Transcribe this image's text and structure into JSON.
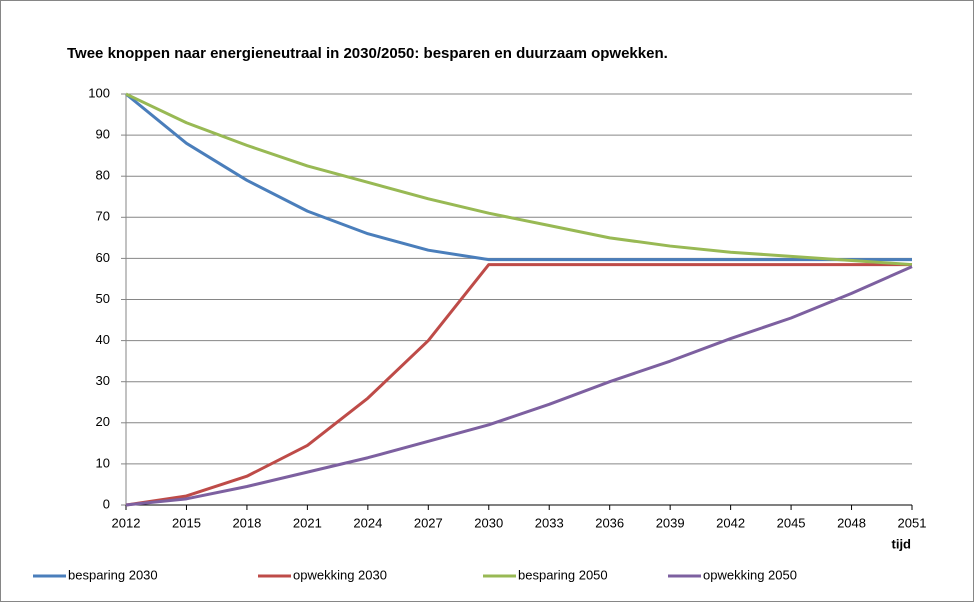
{
  "chart_data": {
    "type": "line",
    "title": "Twee knoppen naar energieneutraal in 2030/2050:  besparen en duurzaam opwekken.",
    "x_label": "tijd",
    "x": [
      2012,
      2015,
      2018,
      2021,
      2024,
      2027,
      2030,
      2033,
      2036,
      2039,
      2042,
      2045,
      2048,
      2051
    ],
    "series": [
      {
        "name": "besparing 2030",
        "color": "#4a7ebb",
        "values": [
          100,
          88,
          79,
          71.5,
          66,
          62,
          59.7,
          59.7,
          59.7,
          59.7,
          59.7,
          59.7,
          59.7,
          59.7
        ]
      },
      {
        "name": "opwekking 2030",
        "color": "#be4b48",
        "values": [
          0,
          2.2,
          7,
          14.5,
          26,
          40,
          58.5,
          58.5,
          58.5,
          58.5,
          58.5,
          58.5,
          58.5,
          58.5
        ]
      },
      {
        "name": "besparing 2050",
        "color": "#98b954",
        "values": [
          100,
          93,
          87.5,
          82.5,
          78.5,
          74.5,
          71,
          68,
          65,
          63,
          61.5,
          60.5,
          59.5,
          58.5
        ]
      },
      {
        "name": "opwekking 2050",
        "color": "#7d60a0",
        "values": [
          0,
          1.5,
          4.5,
          8,
          11.5,
          15.5,
          19.5,
          24.5,
          30,
          35,
          40.5,
          45.5,
          51.5,
          58
        ]
      }
    ],
    "xlim": [
      2012,
      2051
    ],
    "xticks": [
      2012,
      2015,
      2018,
      2021,
      2024,
      2027,
      2030,
      2033,
      2036,
      2039,
      2042,
      2045,
      2048,
      2051
    ],
    "ylim": [
      0,
      100
    ],
    "yticks": [
      0,
      10,
      20,
      30,
      40,
      50,
      60,
      70,
      80,
      90,
      100
    ],
    "grid": true,
    "legend": "bottom"
  }
}
